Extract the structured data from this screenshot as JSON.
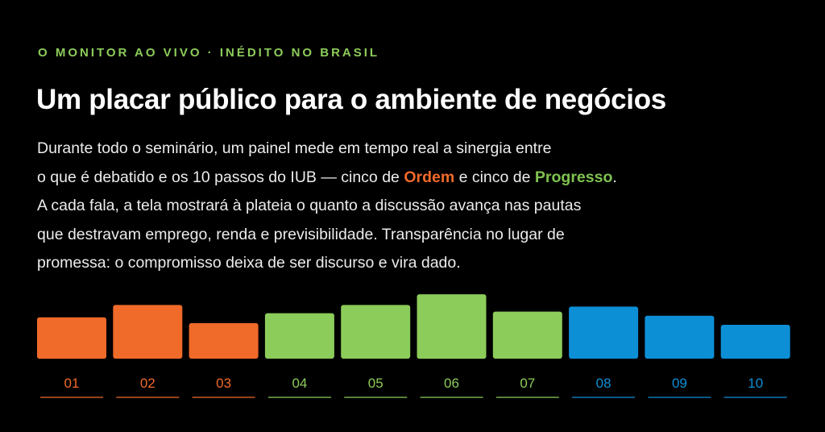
{
  "kicker": "O MONITOR AO VIVO · INÉDITO NO BRASIL",
  "headline": "Um placar público para o ambiente de negócios",
  "body": {
    "line1": "Durante todo o seminário, um painel mede em tempo real a sinergia entre",
    "line2_pre": "o que é debatido e os 10 passos do IUB — cinco de ",
    "line2_order": "Ordem",
    "line2_mid": " e cinco de ",
    "line2_progress": "Progresso",
    "line2_post": ".",
    "line3": "A cada fala, a tela mostrará à plateia o quanto a discussão avança nas pautas",
    "line4": "que destravam emprego, renda e previsibilidade. Transparência no lugar de",
    "line5": "promessa: o compromisso deixa de ser discurso e vira dado."
  },
  "colors": {
    "orden": "#f06a2a",
    "progresso": "#8ccc5a",
    "blue": "#0d8fd6",
    "background": "#000000"
  },
  "chart_data": {
    "type": "bar",
    "categories": [
      "01",
      "02",
      "03",
      "04",
      "05",
      "06",
      "07",
      "08",
      "09",
      "10"
    ],
    "values": [
      50,
      65,
      43,
      55,
      65,
      78,
      57,
      63,
      52,
      41
    ],
    "groups": [
      "Ordem",
      "Ordem",
      "Ordem",
      "Progresso",
      "Progresso",
      "Progresso",
      "Progresso",
      "blue",
      "blue",
      "blue"
    ],
    "title": "",
    "xlabel": "",
    "ylabel": "",
    "grid": false
  }
}
